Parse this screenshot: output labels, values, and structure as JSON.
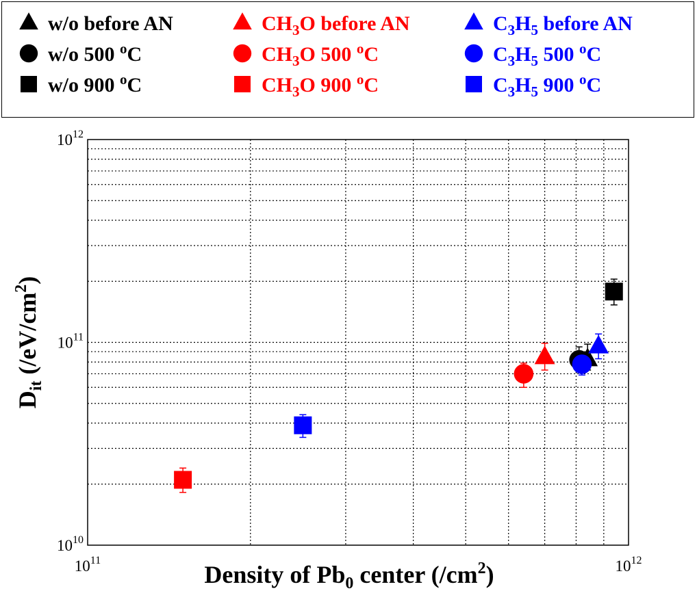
{
  "chart_data": {
    "type": "scatter",
    "xscale": "log",
    "yscale": "log",
    "xlim": [
      100000000000.0,
      1000000000000.0
    ],
    "ylim": [
      10000000000.0,
      1000000000000.0
    ],
    "grid": true,
    "legend_position": "top",
    "xlabel": {
      "main": "Density of Pb",
      "sub": "0",
      "rest": " center (/cm",
      "sup": "2",
      "end": ")"
    },
    "ylabel": {
      "main": "D",
      "sub": "it",
      "rest": " (/eV/cm",
      "sup": "2",
      "end": ")"
    },
    "x_ticks": [
      {
        "value": 100000000000.0,
        "base": "10",
        "exp": "11"
      },
      {
        "value": 1000000000000.0,
        "base": "10",
        "exp": "12"
      }
    ],
    "y_ticks": [
      {
        "value": 10000000000.0,
        "base": "10",
        "exp": "10"
      },
      {
        "value": 100000000000.0,
        "base": "10",
        "exp": "11"
      },
      {
        "value": 1000000000000.0,
        "base": "10",
        "exp": "12"
      }
    ],
    "legend": [
      {
        "marker": "triangle",
        "color": "#000000",
        "parts": [
          {
            "t": "w/o before AN"
          }
        ]
      },
      {
        "marker": "triangle",
        "color": "#ff0000",
        "parts": [
          {
            "t": "CH"
          },
          {
            "t": "3",
            "s": "sub"
          },
          {
            "t": "O  before AN"
          }
        ]
      },
      {
        "marker": "triangle",
        "color": "#0000ff",
        "parts": [
          {
            "t": "C"
          },
          {
            "t": "3",
            "s": "sub"
          },
          {
            "t": "H"
          },
          {
            "t": "5",
            "s": "sub"
          },
          {
            "t": "  before AN"
          }
        ]
      },
      {
        "marker": "circle",
        "color": "#000000",
        "parts": [
          {
            "t": "w/o 500 "
          },
          {
            "t": "o",
            "s": "sup"
          },
          {
            "t": "C"
          }
        ]
      },
      {
        "marker": "circle",
        "color": "#ff0000",
        "parts": [
          {
            "t": "CH"
          },
          {
            "t": "3",
            "s": "sub"
          },
          {
            "t": "O  500 "
          },
          {
            "t": "o",
            "s": "sup"
          },
          {
            "t": "C"
          }
        ]
      },
      {
        "marker": "circle",
        "color": "#0000ff",
        "parts": [
          {
            "t": "C"
          },
          {
            "t": "3",
            "s": "sub"
          },
          {
            "t": "H"
          },
          {
            "t": "5",
            "s": "sub"
          },
          {
            "t": " 500 "
          },
          {
            "t": "o",
            "s": "sup"
          },
          {
            "t": "C"
          }
        ]
      },
      {
        "marker": "square",
        "color": "#000000",
        "parts": [
          {
            "t": "w/o 900 "
          },
          {
            "t": "o",
            "s": "sup"
          },
          {
            "t": "C"
          }
        ]
      },
      {
        "marker": "square",
        "color": "#ff0000",
        "parts": [
          {
            "t": "CH"
          },
          {
            "t": "3",
            "s": "sub"
          },
          {
            "t": "O  900 "
          },
          {
            "t": "o",
            "s": "sup"
          },
          {
            "t": "C"
          }
        ]
      },
      {
        "marker": "square",
        "color": "#0000ff",
        "parts": [
          {
            "t": "C"
          },
          {
            "t": "3",
            "s": "sub"
          },
          {
            "t": "H"
          },
          {
            "t": "5",
            "s": "sub"
          },
          {
            "t": " 900 "
          },
          {
            "t": "o",
            "s": "sup"
          },
          {
            "t": "C"
          }
        ]
      }
    ],
    "series": [
      {
        "name": "w/o before AN",
        "marker": "triangle",
        "color": "#000000",
        "x": 840000000000.0,
        "y": 83000000000.0,
        "err": [
          73000000000.0,
          98000000000.0
        ]
      },
      {
        "name": "w/o 500 oC",
        "marker": "circle",
        "color": "#000000",
        "x": 810000000000.0,
        "y": 82000000000.0,
        "err": [
          72000000000.0,
          95000000000.0
        ]
      },
      {
        "name": "w/o 900 oC",
        "marker": "square",
        "color": "#000000",
        "x": 940000000000.0,
        "y": 178000000000.0,
        "err": [
          153000000000.0,
          205000000000.0
        ]
      },
      {
        "name": "CH3O before AN",
        "marker": "triangle",
        "color": "#ff0000",
        "x": 700000000000.0,
        "y": 85000000000.0,
        "err": [
          73000000000.0,
          99000000000.0
        ]
      },
      {
        "name": "CH3O 500 oC",
        "marker": "circle",
        "color": "#ff0000",
        "x": 640000000000.0,
        "y": 70000000000.0,
        "err": [
          60000000000.0,
          79000000000.0
        ]
      },
      {
        "name": "CH3O 900 oC",
        "marker": "square",
        "color": "#ff0000",
        "x": 150000000000.0,
        "y": 21000000000.0,
        "err": [
          18200000000.0,
          24000000000.0
        ]
      },
      {
        "name": "C3H5 before AN",
        "marker": "triangle",
        "color": "#0000ff",
        "x": 880000000000.0,
        "y": 96000000000.0,
        "err": [
          83000000000.0,
          110000000000.0
        ]
      },
      {
        "name": "C3H5 500 oC",
        "marker": "circle",
        "color": "#0000ff",
        "x": 820000000000.0,
        "y": 78000000000.0,
        "err": [
          69000000000.0,
          88000000000.0
        ]
      },
      {
        "name": "C3H5 900 oC",
        "marker": "square",
        "color": "#0000ff",
        "x": 250000000000.0,
        "y": 39000000000.0,
        "err": [
          34000000000.0,
          44000000000.0
        ]
      }
    ]
  }
}
